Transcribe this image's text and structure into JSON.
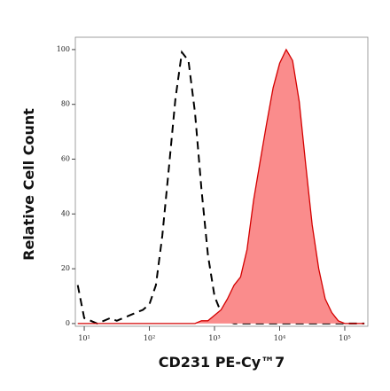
{
  "chart_data": {
    "type": "histogram-overlay",
    "x_label": "CD231 PE-Cy™7",
    "y_label": "Relative Cell Count",
    "x_log": true,
    "x": [
      7.94,
      10,
      12.6,
      15.8,
      20,
      25.1,
      31.6,
      39.8,
      50.1,
      63.1,
      79.4,
      100,
      126,
      158,
      200,
      251,
      316,
      398,
      501,
      631,
      794,
      1000,
      1260,
      1580,
      2000,
      2510,
      3160,
      3980,
      5010,
      6310,
      7940,
      10000,
      12600,
      15800,
      20000,
      25100,
      31600,
      39800,
      50100,
      63100,
      79400,
      100000,
      126000,
      158000,
      200000
    ],
    "series": [
      {
        "color": "#000000",
        "dashed": true,
        "values": [
          14,
          2,
          1,
          0,
          1,
          2,
          1,
          2,
          3,
          4,
          5,
          7,
          14,
          32,
          57,
          82,
          99,
          96,
          77,
          49,
          25,
          10,
          4,
          1,
          0,
          0,
          0,
          0,
          0,
          0,
          0,
          0,
          0,
          0,
          0,
          0,
          0,
          0,
          0,
          0,
          0,
          0,
          0,
          0,
          0
        ]
      },
      {
        "color": "#d40000",
        "fill": "#fa8c8c",
        "values": [
          0,
          0,
          0,
          0,
          0,
          0,
          0,
          0,
          0,
          0,
          0,
          0,
          0,
          0,
          0,
          0,
          0,
          0,
          0,
          1,
          1,
          3,
          5,
          9,
          14,
          17,
          27,
          45,
          59,
          73,
          86,
          95,
          100,
          96,
          81,
          58,
          36,
          20,
          9,
          4,
          1,
          0,
          0,
          0,
          0
        ]
      }
    ],
    "xlim": [
      7.3,
      226000
    ],
    "xticks": [
      {
        "value": 10,
        "label": "10¹"
      },
      {
        "value": 100,
        "label": "10²"
      },
      {
        "value": 1000,
        "label": "10³"
      },
      {
        "value": 10000,
        "label": "10⁴"
      },
      {
        "value": 100000,
        "label": "10⁵"
      }
    ],
    "ylim": [
      -1,
      104.5
    ],
    "yticks": [
      0,
      20,
      40,
      60,
      80,
      100
    ]
  }
}
